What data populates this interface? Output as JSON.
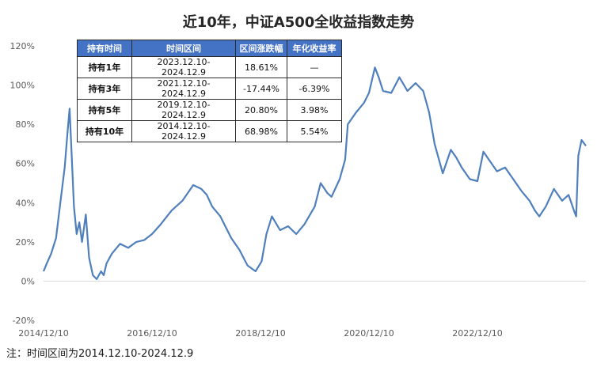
{
  "title": "近10年，中证A500全收益指数走势",
  "footnote": "注：时间区间为2014.12.10-2024.12.9",
  "colors": {
    "line": "#4f7fbd",
    "header_bg": "#4472c4",
    "axis": "#d9d9d9"
  },
  "table": {
    "headers": [
      "持有时间",
      "时间区间",
      "区间涨跌幅",
      "年化收益率"
    ],
    "rows": [
      [
        "持有1年",
        "2023.12.10-2024.12.9",
        "18.61%",
        "—"
      ],
      [
        "持有3年",
        "2021.12.10-2024.12.9",
        "-17.44%",
        "-6.39%"
      ],
      [
        "持有5年",
        "2019.12.10-2024.12.9",
        "20.80%",
        "3.98%"
      ],
      [
        "持有10年",
        "2014.12.10-2024.12.9",
        "68.98%",
        "5.54%"
      ]
    ]
  },
  "chart_data": {
    "type": "line",
    "title": "近10年，中证A500全收益指数走势",
    "xlabel": "",
    "ylabel": "",
    "ylim": [
      -20,
      120
    ],
    "yticks": [
      -20,
      0,
      20,
      40,
      60,
      80,
      100,
      120
    ],
    "ytick_labels": [
      "-20%",
      "0%",
      "20%",
      "40%",
      "60%",
      "80%",
      "100%",
      "120%"
    ],
    "xlim": [
      2014.94,
      2024.94
    ],
    "xticks": [
      2014.94,
      2016.94,
      2018.94,
      2020.94,
      2022.94
    ],
    "xtick_labels": [
      "2014/12/10",
      "2016/12/10",
      "2018/12/10",
      "2020/12/10",
      "2022/12/10"
    ],
    "series": [
      {
        "name": "中证A500全收益指数",
        "x": [
          2014.94,
          2015.0,
          2015.08,
          2015.17,
          2015.25,
          2015.33,
          2015.38,
          2015.42,
          2015.45,
          2015.5,
          2015.55,
          2015.6,
          2015.65,
          2015.72,
          2015.78,
          2015.85,
          2015.92,
          2016.0,
          2016.05,
          2016.1,
          2016.2,
          2016.35,
          2016.5,
          2016.65,
          2016.8,
          2016.94,
          2017.1,
          2017.3,
          2017.5,
          2017.7,
          2017.85,
          2017.95,
          2018.05,
          2018.2,
          2018.4,
          2018.55,
          2018.7,
          2018.85,
          2018.96,
          2019.05,
          2019.15,
          2019.3,
          2019.45,
          2019.6,
          2019.75,
          2019.94,
          2020.05,
          2020.17,
          2020.25,
          2020.4,
          2020.5,
          2020.55,
          2020.7,
          2020.85,
          2020.94,
          2021.05,
          2021.12,
          2021.2,
          2021.35,
          2021.5,
          2021.65,
          2021.8,
          2021.94,
          2022.05,
          2022.15,
          2022.3,
          2022.45,
          2022.55,
          2022.65,
          2022.8,
          2022.94,
          2023.05,
          2023.15,
          2023.3,
          2023.45,
          2023.6,
          2023.75,
          2023.9,
          2024.0,
          2024.08,
          2024.2,
          2024.35,
          2024.5,
          2024.62,
          2024.72,
          2024.76,
          2024.8,
          2024.86,
          2024.94
        ],
        "y": [
          5,
          9,
          14,
          22,
          40,
          58,
          75,
          88,
          70,
          38,
          24,
          30,
          20,
          34,
          12,
          3,
          1,
          5,
          3,
          9,
          14,
          19,
          17,
          20,
          21,
          24,
          29,
          36,
          41,
          49,
          47,
          44,
          38,
          33,
          22,
          16,
          8,
          5,
          10,
          24,
          33,
          26,
          28,
          24,
          29,
          38,
          50,
          45,
          43,
          52,
          62,
          80,
          86,
          91,
          96,
          109,
          104,
          97,
          96,
          104,
          97,
          101,
          97,
          86,
          70,
          55,
          67,
          63,
          58,
          52,
          51,
          66,
          62,
          56,
          58,
          52,
          46,
          41,
          36,
          33,
          38,
          47,
          41,
          44,
          36,
          33,
          64,
          72,
          69
        ]
      }
    ]
  }
}
